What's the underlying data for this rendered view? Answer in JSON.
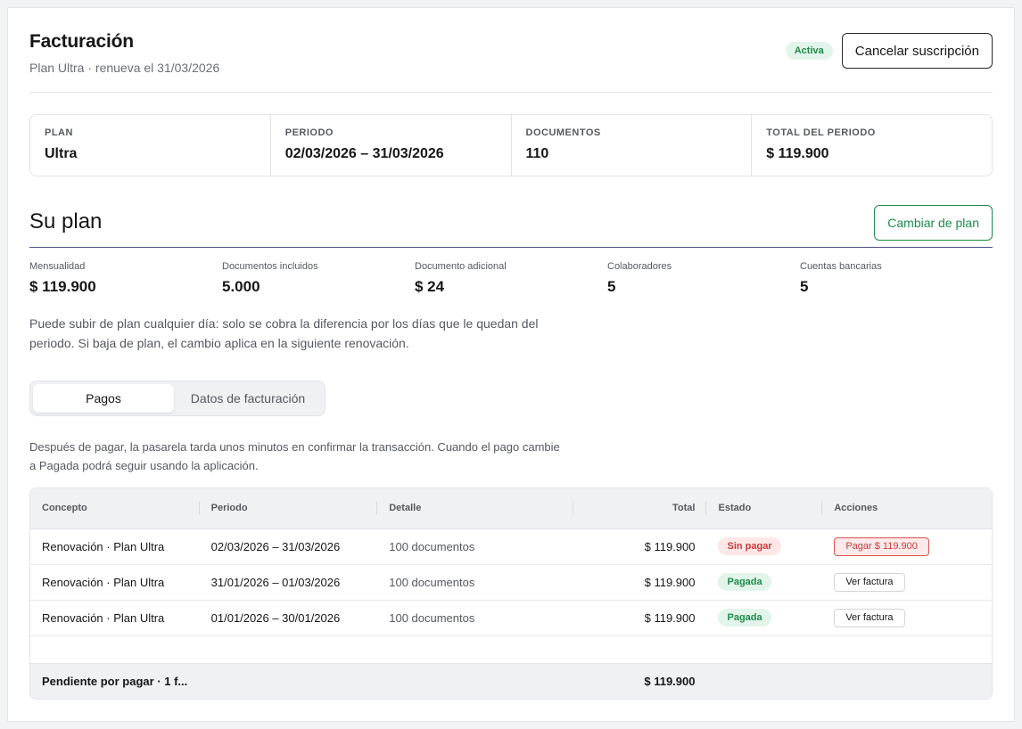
{
  "header": {
    "title": "Facturación",
    "subtitle": "Plan Ultra · renueva el 31/03/2026",
    "status_badge": "Activa",
    "cancel_label": "Cancelar suscripción"
  },
  "summary": [
    {
      "label": "PLAN",
      "value": "Ultra"
    },
    {
      "label": "PERIODO",
      "value": "02/03/2026 – 31/03/2026"
    },
    {
      "label": "DOCUMENTOS",
      "value": "110"
    },
    {
      "label": "TOTAL DEL PERIODO",
      "value": "$ 119.900"
    }
  ],
  "plan": {
    "heading": "Su plan",
    "change_label": "Cambiar de plan",
    "metrics": [
      {
        "label": "Mensualidad",
        "value": "$ 119.900"
      },
      {
        "label": "Documentos incluidos",
        "value": "5.000"
      },
      {
        "label": "Documento adicional",
        "value": "$ 24"
      },
      {
        "label": "Colaboradores",
        "value": "5"
      },
      {
        "label": "Cuentas bancarias",
        "value": "5"
      }
    ],
    "note": "Puede subir de plan cualquier día: solo se cobra la diferencia por los días que le quedan del periodo. Si baja de plan, el cambio aplica en la siguiente renovación."
  },
  "tabs": [
    {
      "label": "Pagos",
      "active": true
    },
    {
      "label": "Datos de facturación",
      "active": false
    }
  ],
  "payments": {
    "note": "Después de pagar, la pasarela tarda unos minutos en confirmar la transacción. Cuando el pago cambie a Pagada podrá seguir usando la aplicación.",
    "columns": [
      "Concepto",
      "Periodo",
      "Detalle",
      "Total",
      "Estado",
      "Acciones"
    ],
    "rows": [
      {
        "concept": "Renovación · Plan Ultra",
        "period": "02/03/2026 – 31/03/2026",
        "detail": "100 documentos",
        "total": "$ 119.900",
        "status": "Sin pagar",
        "action": "Pagar $ 119.900"
      },
      {
        "concept": "Renovación · Plan Ultra",
        "period": "31/01/2026 – 01/03/2026",
        "detail": "100 documentos",
        "total": "$ 119.900",
        "status": "Pagada",
        "action": "Ver factura"
      },
      {
        "concept": "Renovación · Plan Ultra",
        "period": "01/01/2026 – 30/01/2026",
        "detail": "100 documentos",
        "total": "$ 119.900",
        "status": "Pagada",
        "action": "Ver factura"
      }
    ],
    "footer": {
      "label": "Pendiente por pagar · 1 f...",
      "total": "$ 119.900"
    }
  },
  "colors": {
    "green": "#1e8a4c",
    "red": "#c73a3a",
    "accent_rule": "#4a4f86"
  }
}
